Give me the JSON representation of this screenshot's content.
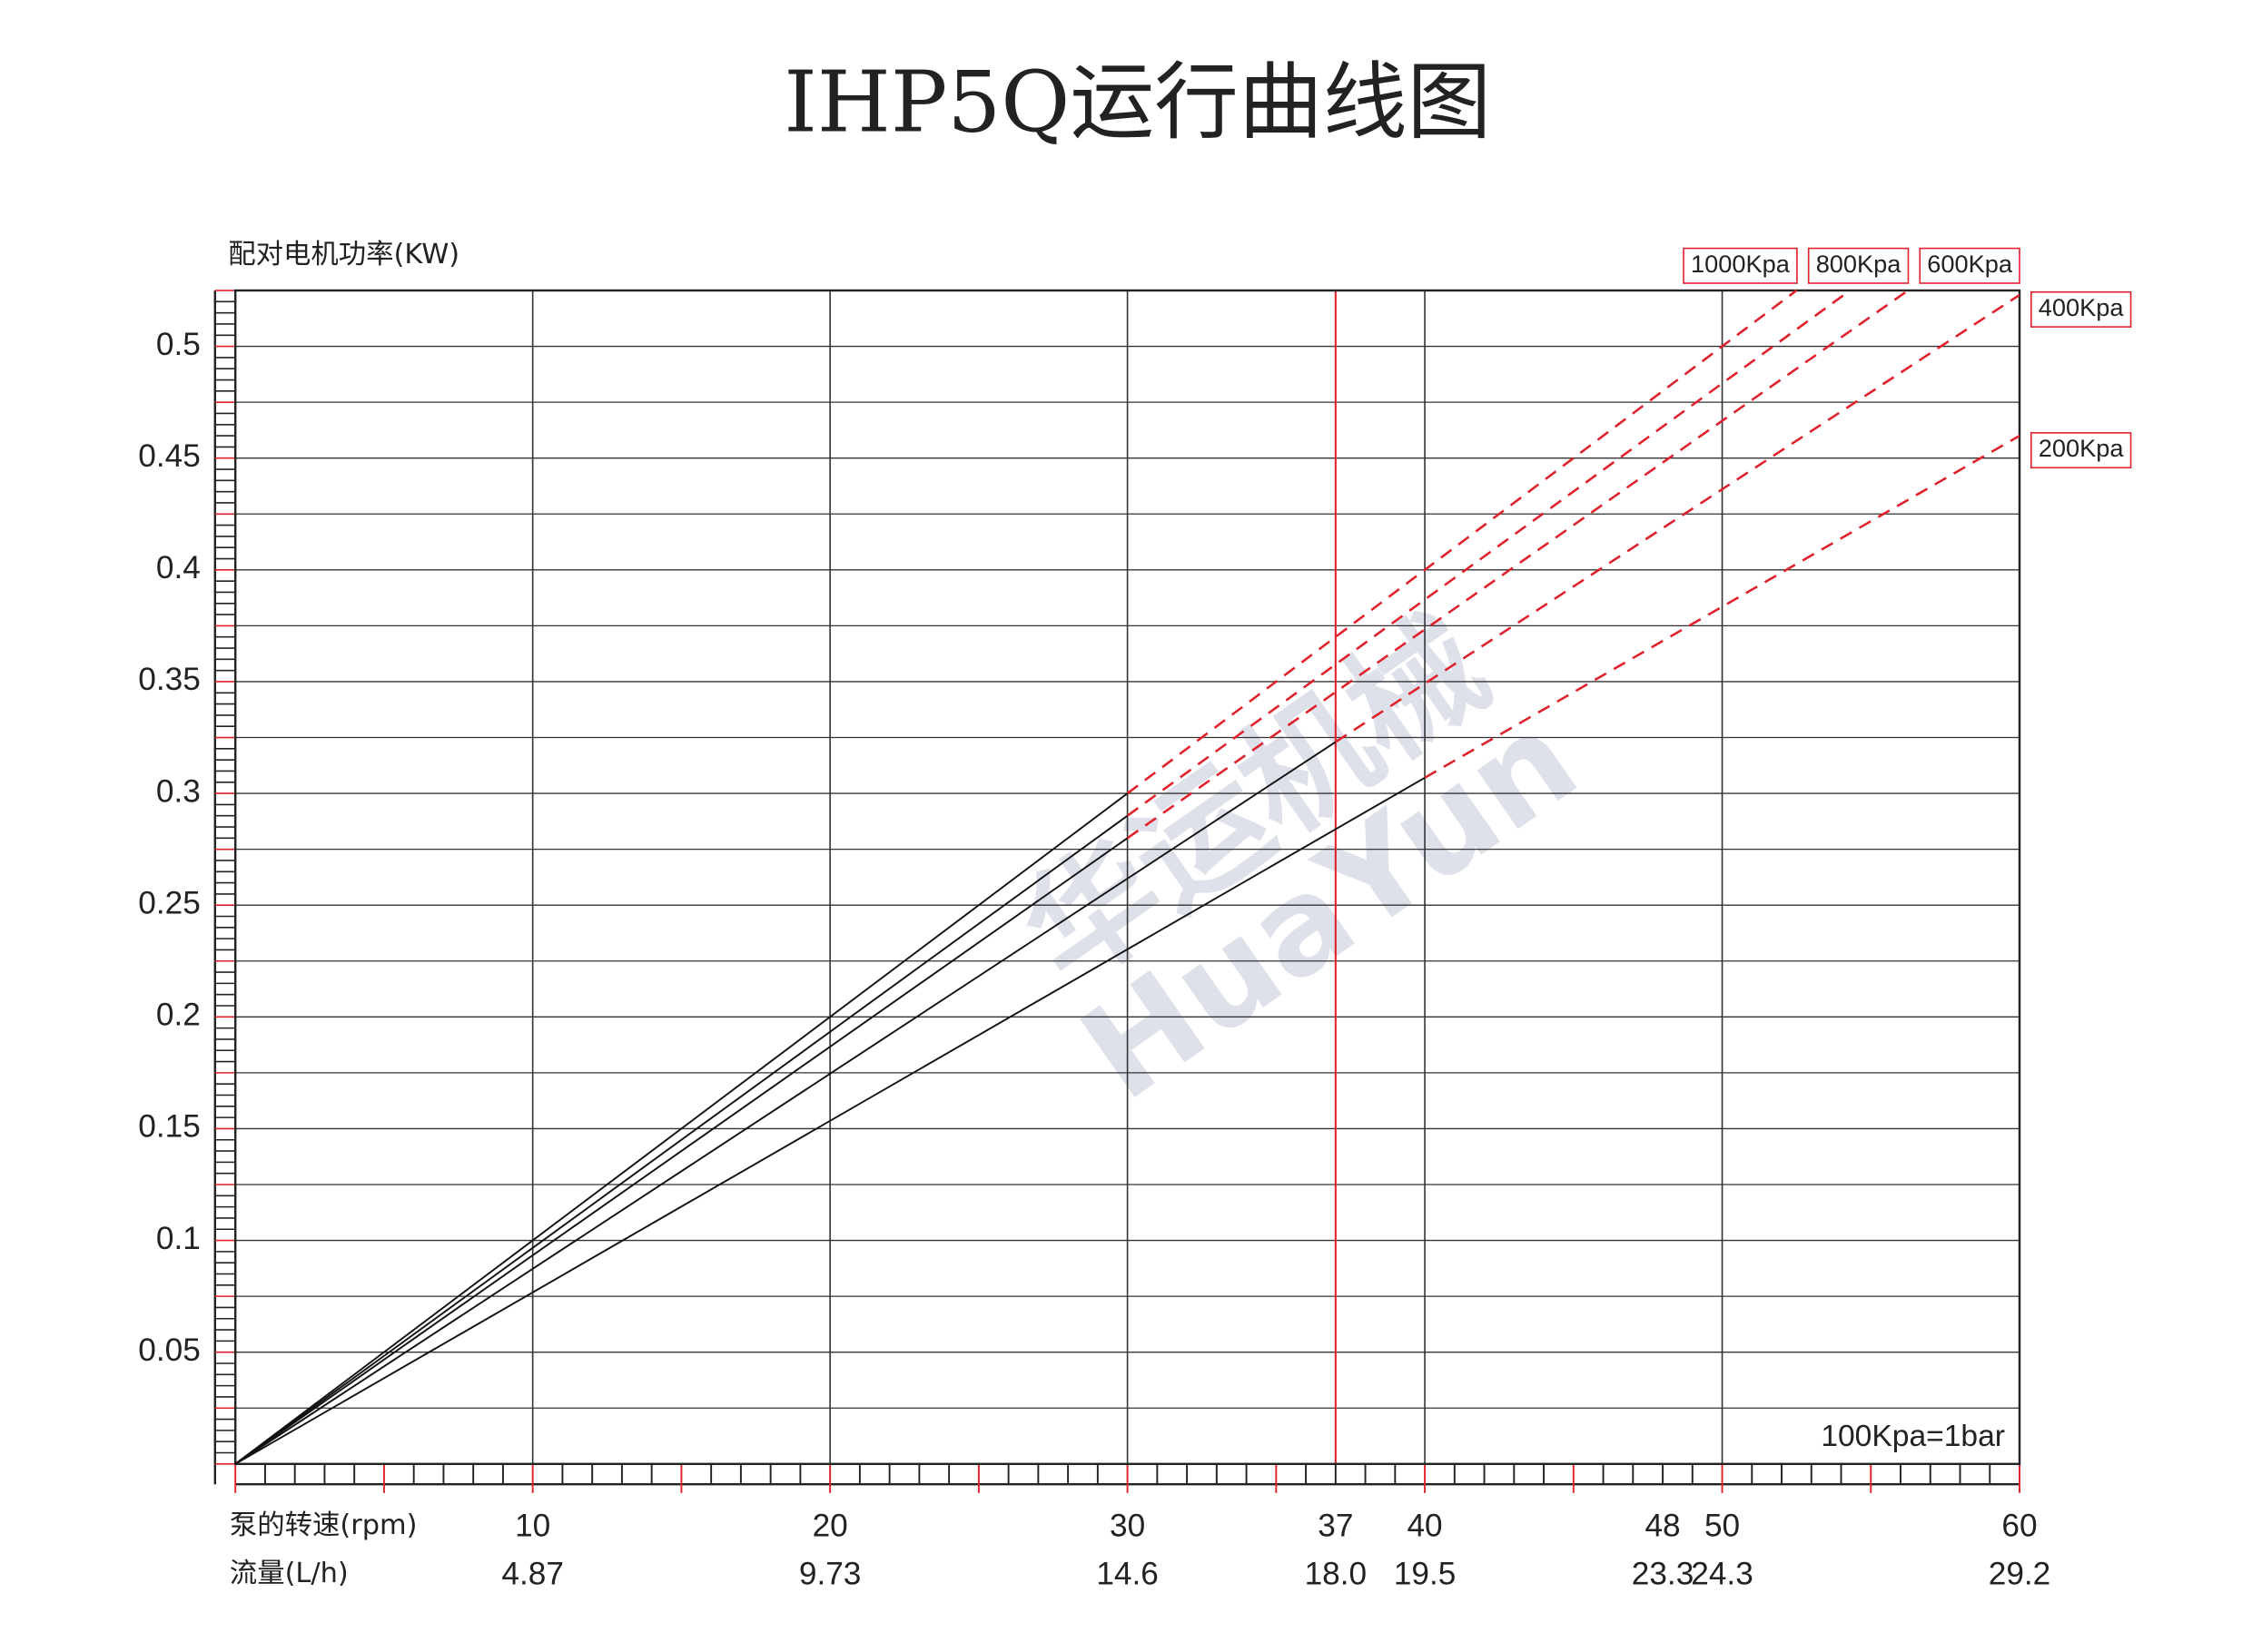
{
  "chart_data": {
    "type": "line",
    "title": "IHP5Q运行曲线图",
    "y_label": "配对电机功率(KW)",
    "x_label": "泵的转速(rpm)",
    "flow_label": "流量(L/h)",
    "note": "100Kpa=1bar",
    "watermark": [
      "华运机械",
      "HuaYun"
    ],
    "xlim": [
      0,
      60
    ],
    "ylim": [
      0,
      0.525
    ],
    "xticks": [
      10,
      20,
      30,
      37,
      40,
      48,
      50,
      60
    ],
    "flow_ticks": [
      4.87,
      9.73,
      14.6,
      {
        "value": 18.0,
        "label": "18.0"
      },
      19.5,
      23.3,
      24.3,
      29.2
    ],
    "yticks": [
      0.05,
      0.1,
      0.15,
      0.2,
      0.25,
      0.3,
      0.35,
      0.4,
      0.45,
      0.5
    ],
    "y_minor_grid": [
      0.025,
      0.075,
      0.125,
      0.175,
      0.225,
      0.275,
      0.325,
      0.375,
      0.425,
      0.475
    ],
    "x_grid": [
      10,
      20,
      30,
      40,
      50
    ],
    "highlight_x": 37,
    "highlight_color": "#e0202a",
    "segment_styles": [
      "solid",
      "dashed"
    ],
    "series": [
      {
        "name": "1000Kpa",
        "color": "#111111",
        "dash_color": "#e0202a",
        "x": [
          0,
          30,
          52.5
        ],
        "values": [
          0,
          0.3,
          0.525
        ]
      },
      {
        "name": "800Kpa",
        "color": "#111111",
        "dash_color": "#e0202a",
        "x": [
          0,
          30,
          54.3
        ],
        "values": [
          0,
          0.29,
          0.525
        ]
      },
      {
        "name": "600Kpa",
        "color": "#111111",
        "dash_color": "#e0202a",
        "x": [
          0,
          30,
          56.25
        ],
        "values": [
          0,
          0.28,
          0.525
        ]
      },
      {
        "name": "400Kpa",
        "color": "#111111",
        "dash_color": "#e0202a",
        "x": [
          0,
          37,
          60
        ],
        "values": [
          0,
          0.323,
          0.523
        ]
      },
      {
        "name": "200Kpa",
        "color": "#111111",
        "dash_color": "#e0202a",
        "x": [
          0,
          40,
          60
        ],
        "values": [
          0,
          0.307,
          0.46
        ]
      }
    ]
  }
}
